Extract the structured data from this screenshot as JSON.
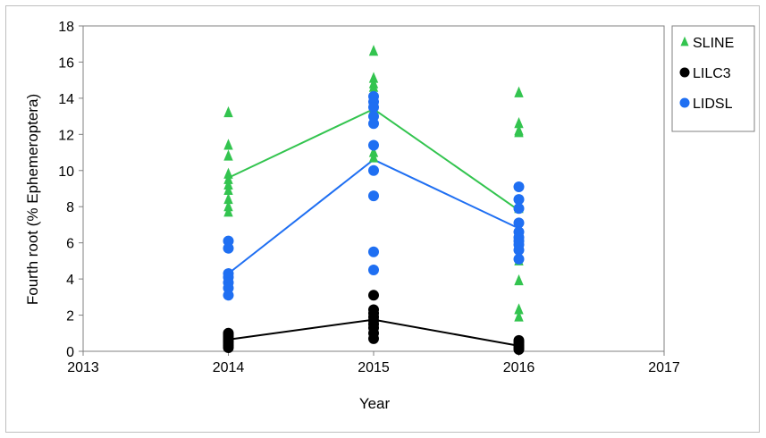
{
  "chart_data": {
    "type": "scatter",
    "title": "",
    "xlabel": "Year",
    "ylabel": "Fourth root (% Ephemeroptera)",
    "xlim": [
      2013,
      2017
    ],
    "ylim": [
      0,
      18
    ],
    "x_ticks": [
      "2013",
      "2014",
      "2015",
      "2016",
      "2017"
    ],
    "y_ticks": [
      "0",
      "2",
      "4",
      "6",
      "8",
      "10",
      "12",
      "14",
      "16",
      "18"
    ],
    "grid": false,
    "legend_position": "top-right",
    "series": [
      {
        "name": "SLINE",
        "marker": "triangle",
        "color": "#33c44f",
        "points": [
          [
            2014,
            13.2
          ],
          [
            2014,
            11.4
          ],
          [
            2014,
            10.8
          ],
          [
            2014,
            9.8
          ],
          [
            2014,
            9.5
          ],
          [
            2014,
            9.2
          ],
          [
            2014,
            8.9
          ],
          [
            2014,
            8.4
          ],
          [
            2014,
            8.0
          ],
          [
            2014,
            7.7
          ],
          [
            2015,
            16.6
          ],
          [
            2015,
            15.1
          ],
          [
            2015,
            14.8
          ],
          [
            2015,
            14.6
          ],
          [
            2015,
            13.9
          ],
          [
            2015,
            13.4
          ],
          [
            2015,
            11.0
          ],
          [
            2015,
            10.7
          ],
          [
            2016,
            14.3
          ],
          [
            2016,
            12.6
          ],
          [
            2016,
            12.2
          ],
          [
            2016,
            12.1
          ],
          [
            2016,
            7.9
          ],
          [
            2016,
            5.0
          ],
          [
            2016,
            3.9
          ],
          [
            2016,
            2.3
          ],
          [
            2016,
            1.9
          ]
        ],
        "mean_line": [
          [
            2014,
            9.6
          ],
          [
            2015,
            13.4
          ],
          [
            2016,
            7.8
          ]
        ]
      },
      {
        "name": "LILC3",
        "marker": "circle",
        "color": "#000000",
        "points": [
          [
            2014,
            1.0
          ],
          [
            2014,
            0.9
          ],
          [
            2014,
            0.8
          ],
          [
            2014,
            0.7
          ],
          [
            2014,
            0.6
          ],
          [
            2014,
            0.5
          ],
          [
            2014,
            0.4
          ],
          [
            2014,
            0.3
          ],
          [
            2014,
            0.2
          ],
          [
            2015,
            3.1
          ],
          [
            2015,
            2.3
          ],
          [
            2015,
            2.1
          ],
          [
            2015,
            1.9
          ],
          [
            2015,
            1.7
          ],
          [
            2015,
            1.5
          ],
          [
            2015,
            1.3
          ],
          [
            2015,
            1.0
          ],
          [
            2015,
            0.7
          ],
          [
            2016,
            0.6
          ],
          [
            2016,
            0.5
          ],
          [
            2016,
            0.4
          ],
          [
            2016,
            0.3
          ],
          [
            2016,
            0.2
          ],
          [
            2016,
            0.1
          ]
        ],
        "mean_line": [
          [
            2014,
            0.65
          ],
          [
            2015,
            1.75
          ],
          [
            2016,
            0.3
          ]
        ]
      },
      {
        "name": "LIDSL",
        "marker": "circle",
        "color": "#1f6ff2",
        "points": [
          [
            2014,
            6.1
          ],
          [
            2014,
            5.7
          ],
          [
            2014,
            4.3
          ],
          [
            2014,
            4.1
          ],
          [
            2014,
            3.8
          ],
          [
            2014,
            3.5
          ],
          [
            2014,
            3.1
          ],
          [
            2015,
            14.1
          ],
          [
            2015,
            13.8
          ],
          [
            2015,
            13.5
          ],
          [
            2015,
            13.0
          ],
          [
            2015,
            12.6
          ],
          [
            2015,
            11.4
          ],
          [
            2015,
            10.0
          ],
          [
            2015,
            8.6
          ],
          [
            2015,
            5.5
          ],
          [
            2015,
            4.5
          ],
          [
            2016,
            9.1
          ],
          [
            2016,
            8.4
          ],
          [
            2016,
            7.9
          ],
          [
            2016,
            7.1
          ],
          [
            2016,
            6.6
          ],
          [
            2016,
            6.3
          ],
          [
            2016,
            6.1
          ],
          [
            2016,
            5.9
          ],
          [
            2016,
            5.6
          ],
          [
            2016,
            5.1
          ]
        ],
        "mean_line": [
          [
            2014,
            4.3
          ],
          [
            2015,
            10.6
          ],
          [
            2016,
            6.8
          ]
        ]
      }
    ]
  }
}
